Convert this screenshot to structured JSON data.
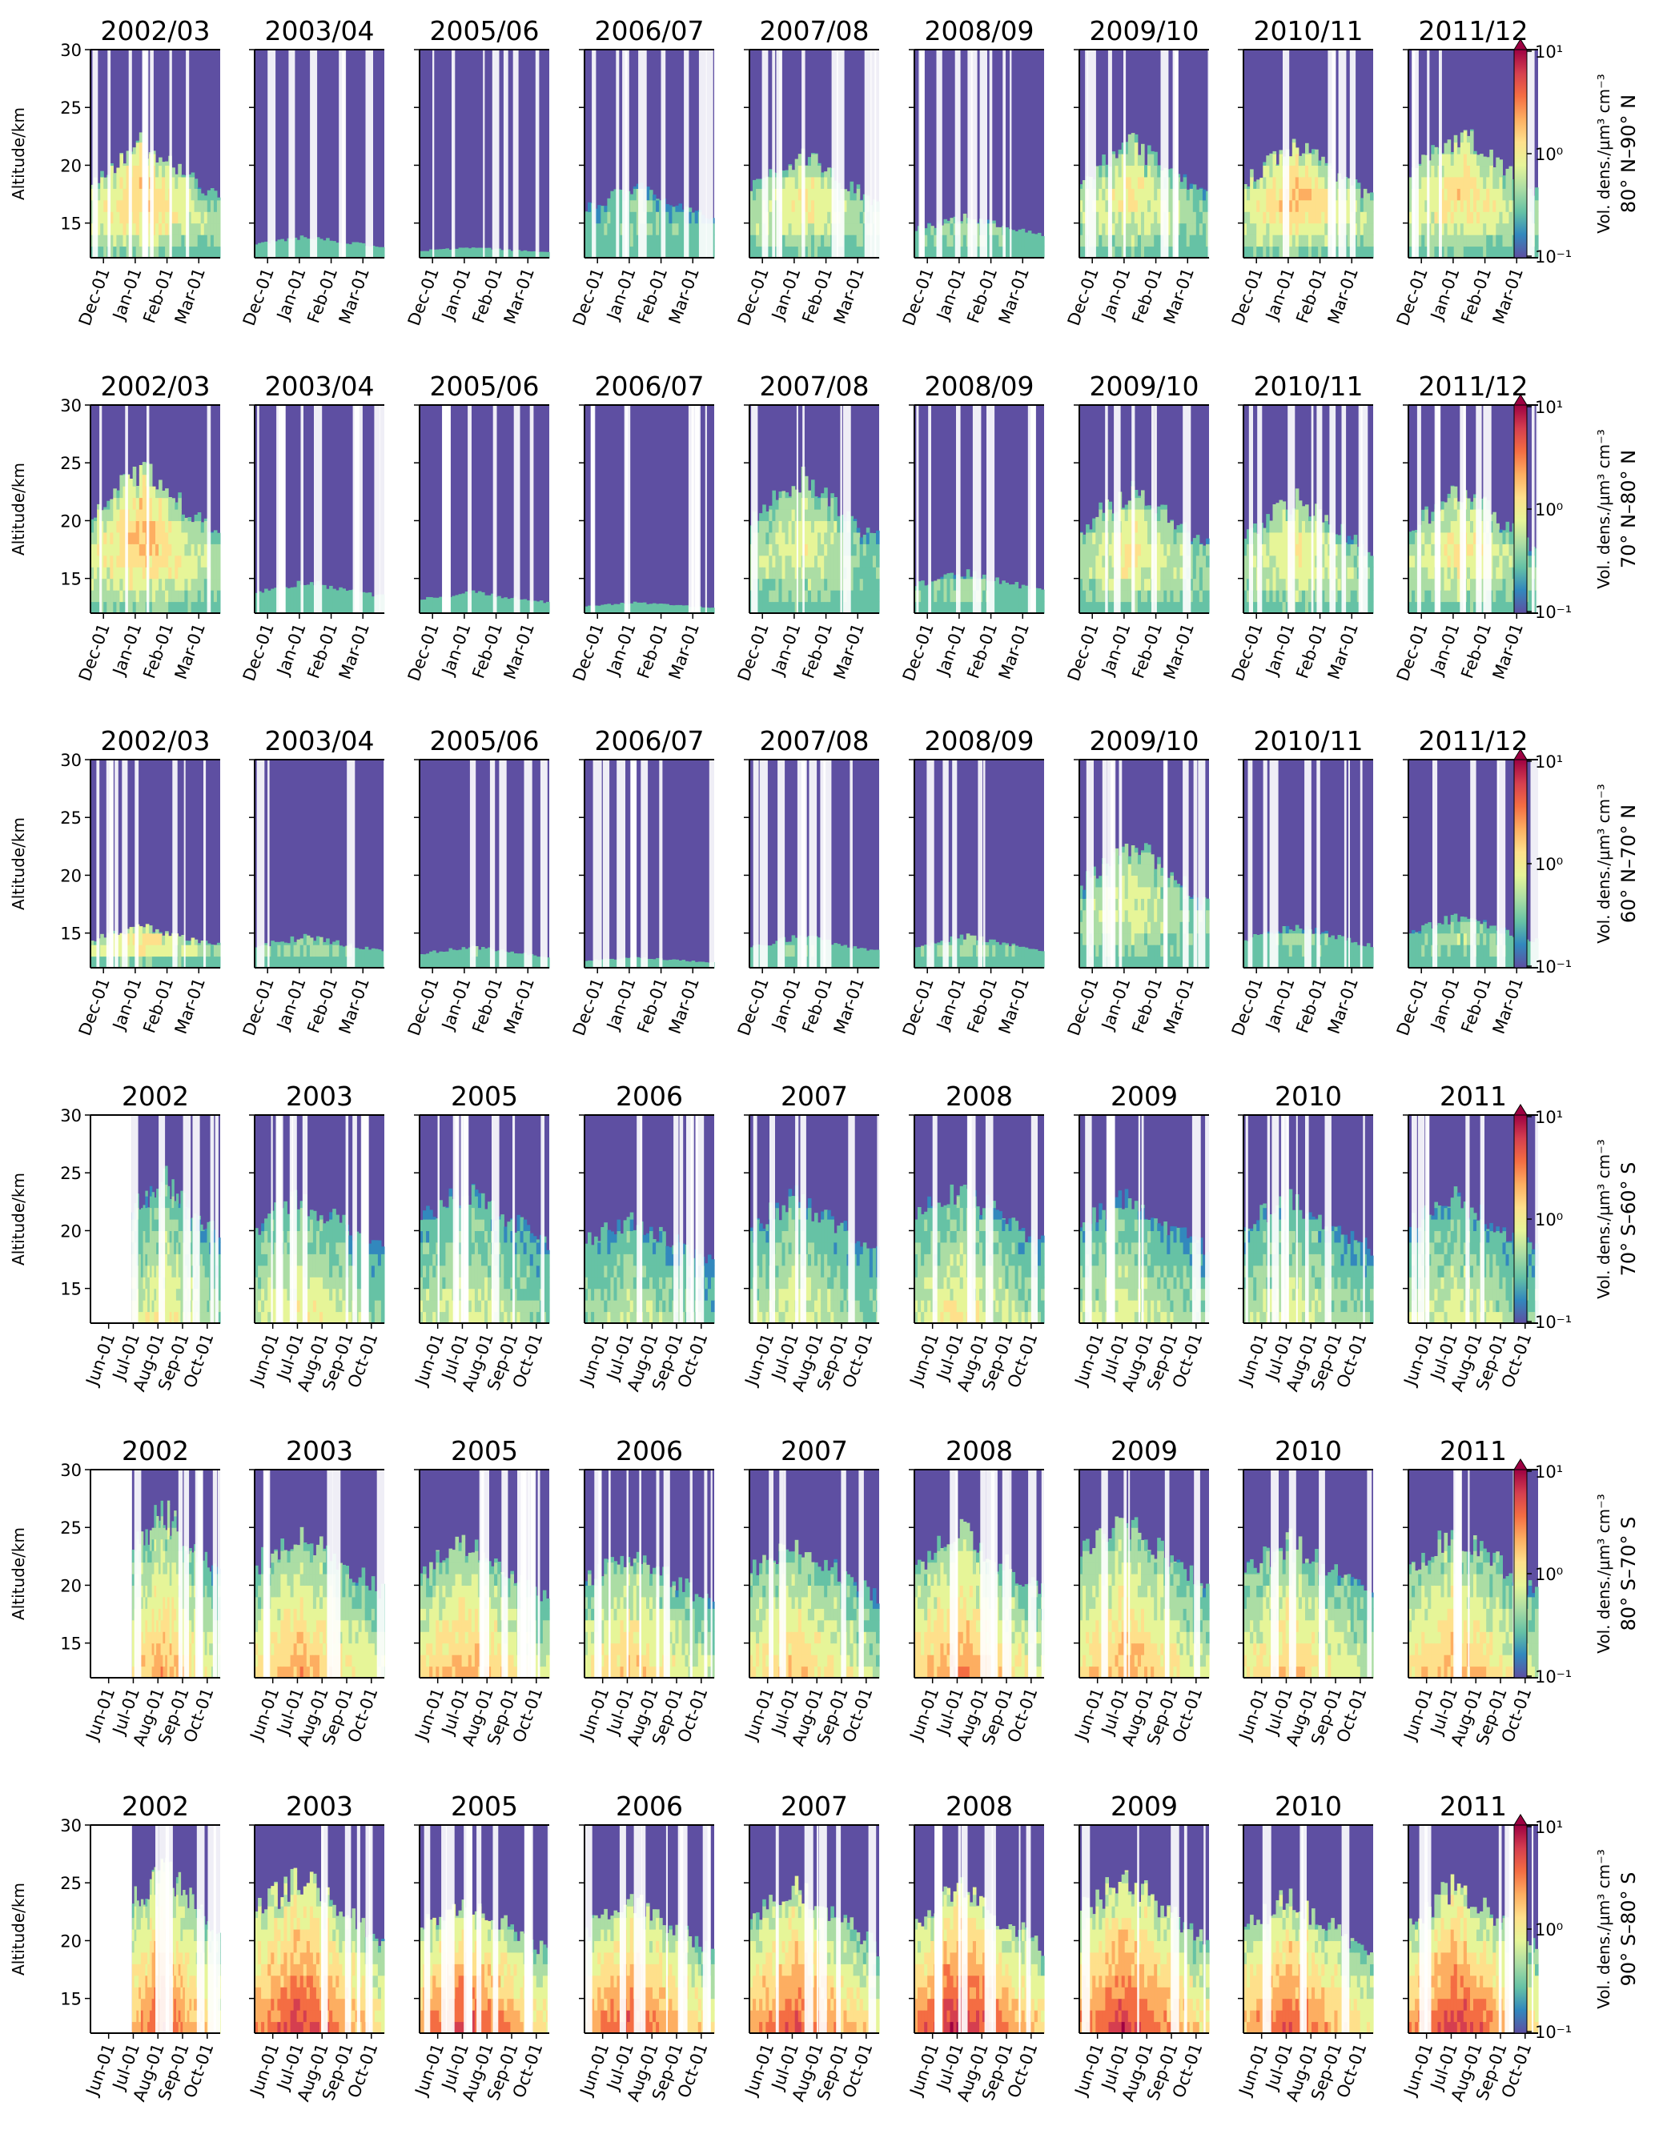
{
  "figure": {
    "y_axis_label": "Altitude/km",
    "colorbar_label": "Vol. dens./µm³ cm⁻³",
    "colorbar_ticks": [
      "10¹",
      "10⁰",
      "10⁻¹"
    ],
    "colormap": [
      "#5e4fa2",
      "#3288bd",
      "#66c2a5",
      "#abdda4",
      "#e6f598",
      "#fee08b",
      "#fdae61",
      "#f46d43",
      "#d53e4f",
      "#9e0142"
    ]
  },
  "chart_data": {
    "type": "heatmap",
    "x": "date",
    "y_range": [
      12,
      30
    ],
    "y_ticks": [
      15,
      20,
      25,
      30
    ],
    "color_scale": "log",
    "color_range": [
      0.1,
      10
    ],
    "rows": [
      {
        "region": "80° N–90° N",
        "seasons": [
          "2002/03",
          "2003/04",
          "2005/06",
          "2006/07",
          "2007/08",
          "2008/09",
          "2009/10",
          "2010/11",
          "2011/12"
        ],
        "x_ticks": [
          "Dec-01",
          "Jan-01",
          "Feb-01",
          "Mar-01"
        ],
        "hemisphere": "north",
        "peak_heights": [
          23,
          14,
          13,
          19,
          22,
          16,
          23,
          23,
          24
        ],
        "peak_intensities": [
          0.55,
          0.15,
          0.1,
          0.25,
          0.45,
          0.3,
          0.45,
          0.55,
          0.5
        ]
      },
      {
        "region": "70° N–80° N",
        "seasons": [
          "2002/03",
          "2003/04",
          "2005/06",
          "2006/07",
          "2007/08",
          "2008/09",
          "2009/10",
          "2010/11",
          "2011/12"
        ],
        "x_ticks": [
          "Dec-01",
          "Jan-01",
          "Feb-01",
          "Mar-01"
        ],
        "hemisphere": "north",
        "peak_heights": [
          26,
          15,
          14,
          13,
          25,
          16,
          24,
          23,
          24
        ],
        "peak_intensities": [
          0.55,
          0.15,
          0.12,
          0.1,
          0.4,
          0.3,
          0.45,
          0.45,
          0.45
        ]
      },
      {
        "region": "60° N–70° N",
        "seasons": [
          "2002/03",
          "2003/04",
          "2005/06",
          "2006/07",
          "2007/08",
          "2008/09",
          "2009/10",
          "2010/11",
          "2011/12"
        ],
        "x_ticks": [
          "Dec-01",
          "Jan-01",
          "Feb-01",
          "Mar-01"
        ],
        "hemisphere": "north",
        "peak_heights": [
          16,
          15,
          14,
          13,
          15,
          15,
          24,
          16,
          17
        ],
        "peak_intensities": [
          0.5,
          0.3,
          0.2,
          0.15,
          0.25,
          0.3,
          0.4,
          0.25,
          0.3
        ]
      },
      {
        "region": "70° S–60° S",
        "seasons": [
          "2002",
          "2003",
          "2005",
          "2006",
          "2007",
          "2008",
          "2009",
          "2010",
          "2011"
        ],
        "x_ticks": [
          "Jun-01",
          "Jul-01",
          "Aug-01",
          "Sep-01",
          "Oct-01"
        ],
        "hemisphere": "south",
        "peak_heights": [
          26,
          24,
          25,
          22,
          24,
          25,
          24,
          24,
          24
        ],
        "peak_intensities": [
          0.45,
          0.45,
          0.4,
          0.35,
          0.4,
          0.45,
          0.4,
          0.4,
          0.4
        ]
      },
      {
        "region": "80° S–70° S",
        "seasons": [
          "2002",
          "2003",
          "2005",
          "2006",
          "2007",
          "2008",
          "2009",
          "2010",
          "2011"
        ],
        "x_ticks": [
          "Jun-01",
          "Jul-01",
          "Aug-01",
          "Sep-01",
          "Oct-01"
        ],
        "hemisphere": "south",
        "peak_heights": [
          28,
          26,
          25,
          24,
          25,
          26,
          27,
          25,
          26
        ],
        "peak_intensities": [
          0.6,
          0.6,
          0.6,
          0.55,
          0.55,
          0.65,
          0.6,
          0.55,
          0.6
        ]
      },
      {
        "region": "90° S–80° S",
        "seasons": [
          "2002",
          "2003",
          "2005",
          "2006",
          "2007",
          "2008",
          "2009",
          "2010",
          "2011"
        ],
        "x_ticks": [
          "Jun-01",
          "Jul-01",
          "Aug-01",
          "Sep-01",
          "Oct-01"
        ],
        "hemisphere": "south",
        "peak_heights": [
          28,
          27,
          25,
          25,
          26,
          26,
          27,
          25,
          26
        ],
        "peak_intensities": [
          0.75,
          0.8,
          0.8,
          0.75,
          0.75,
          0.85,
          0.8,
          0.75,
          0.8
        ]
      }
    ]
  }
}
